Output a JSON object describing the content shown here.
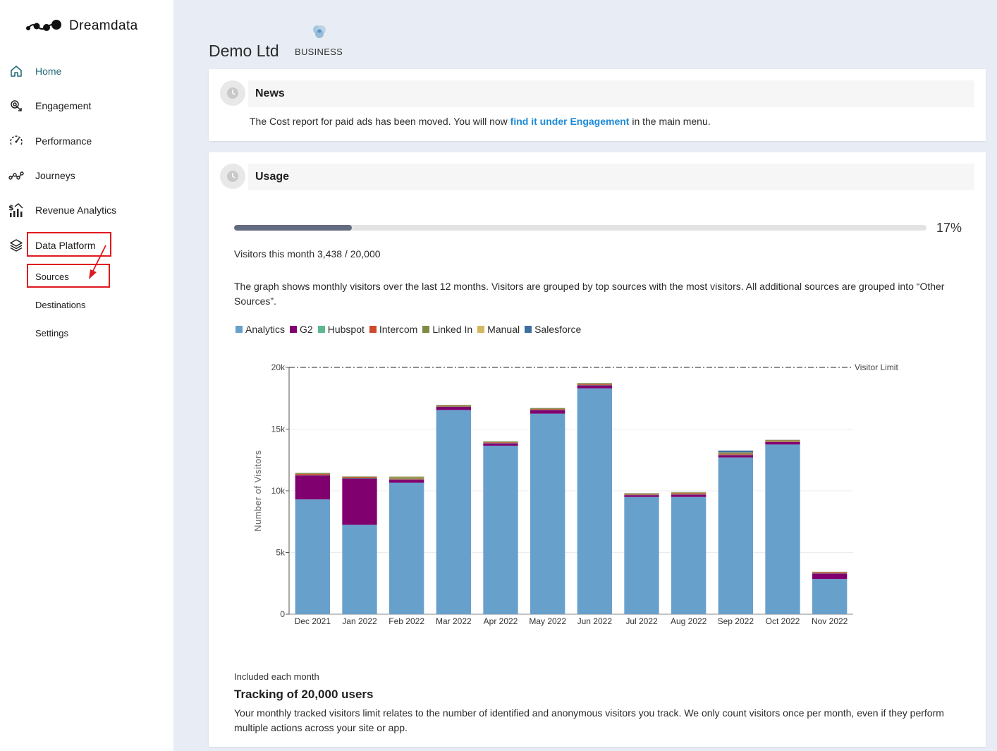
{
  "app": {
    "name": "Dreamdata"
  },
  "sidebar": {
    "items": [
      {
        "label": "Home",
        "icon": "home-icon",
        "active": true
      },
      {
        "label": "Engagement",
        "icon": "engagement-icon"
      },
      {
        "label": "Performance",
        "icon": "performance-icon"
      },
      {
        "label": "Journeys",
        "icon": "journeys-icon"
      },
      {
        "label": "Revenue Analytics",
        "icon": "revenue-analytics-icon"
      },
      {
        "label": "Data Platform",
        "icon": "layers-icon"
      }
    ],
    "sub_items": [
      {
        "label": "Sources"
      },
      {
        "label": "Destinations"
      },
      {
        "label": "Settings"
      }
    ]
  },
  "header": {
    "company": "Demo Ltd",
    "plan": "BUSINESS"
  },
  "news": {
    "title": "News",
    "text_before": "The Cost report for paid ads has been moved. You will now ",
    "link": "find it under Engagement",
    "text_after": " in the main menu."
  },
  "usage": {
    "title": "Usage",
    "progress": 0.17,
    "progress_label": "17%",
    "visitors_line": "Visitors this month 3,438 / 20,000",
    "description": "The graph shows monthly visitors over the last 12 months. Visitors are grouped by top sources with the most visitors. All additional sources are grouped into “Other Sources”.",
    "included_small": "Included each month",
    "included_title": "Tracking of 20,000 users",
    "included_desc": "Your monthly tracked visitors limit relates to the number of identified and anonymous visitors you track. We only count visitors once per month, even if they perform multiple actions across your site or app."
  },
  "chart_data": {
    "type": "bar",
    "stacked": true,
    "ylabel": "Number of Visitors",
    "xlabel": "",
    "ylim": [
      0,
      20000
    ],
    "yticks": [
      0,
      5000,
      10000,
      15000,
      20000
    ],
    "ytick_labels": [
      "0",
      "5k",
      "10k",
      "15k",
      "20k"
    ],
    "limit_line": {
      "value": 20000,
      "label": "Visitor Limit"
    },
    "categories": [
      "Dec 2021",
      "Jan 2022",
      "Feb 2022",
      "Mar 2022",
      "Apr 2022",
      "May 2022",
      "Jun 2022",
      "Jul 2022",
      "Aug 2022",
      "Sep 2022",
      "Oct 2022",
      "Nov 2022"
    ],
    "series": [
      {
        "name": "Analytics",
        "color": "#68a0cc",
        "values": [
          9300,
          7250,
          10650,
          16550,
          13650,
          16250,
          18300,
          9500,
          9500,
          12700,
          13750,
          2850
        ]
      },
      {
        "name": "G2",
        "color": "#800070",
        "values": [
          1950,
          3750,
          250,
          250,
          200,
          300,
          250,
          150,
          200,
          200,
          200,
          450
        ]
      },
      {
        "name": "Hubspot",
        "color": "#5cb88f",
        "values": [
          30,
          30,
          30,
          30,
          30,
          30,
          30,
          30,
          30,
          30,
          30,
          30
        ]
      },
      {
        "name": "Intercom",
        "color": "#cf4a2c",
        "values": [
          100,
          60,
          50,
          50,
          50,
          50,
          50,
          50,
          80,
          60,
          70,
          80
        ]
      },
      {
        "name": "Linked In",
        "color": "#7f8a45",
        "values": [
          50,
          60,
          120,
          60,
          60,
          60,
          80,
          60,
          60,
          100,
          60,
          20
        ]
      },
      {
        "name": "Manual",
        "color": "#d4b860",
        "values": [
          20,
          20,
          60,
          20,
          20,
          20,
          20,
          20,
          20,
          20,
          20,
          5
        ]
      },
      {
        "name": "Salesforce",
        "color": "#3d6fa3",
        "values": [
          10,
          10,
          10,
          10,
          10,
          10,
          10,
          10,
          10,
          150,
          10,
          5
        ]
      }
    ]
  }
}
